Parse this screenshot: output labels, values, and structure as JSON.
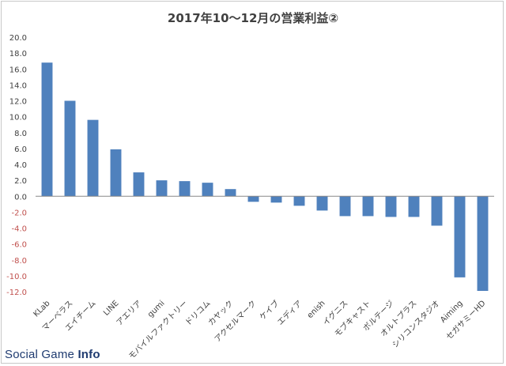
{
  "chart_data": {
    "type": "bar",
    "title": "2017年10〜12月の営業利益②",
    "categories": [
      "KLab",
      "マーベラス",
      "エイチーム",
      "LINE",
      "アエリア",
      "gumi",
      "モバイルファクトリー",
      "ドリコム",
      "カヤック",
      "アクセルマーク",
      "ケイブ",
      "エディア",
      "enish",
      "イグニス",
      "モブキャスト",
      "ボルテージ",
      "オルトプラス",
      "シリコンスタジオ",
      "Aiming",
      "セガサミーHD"
    ],
    "values": [
      16.8,
      12.0,
      9.6,
      5.9,
      3.0,
      2.0,
      1.9,
      1.7,
      0.9,
      -0.7,
      -0.8,
      -1.2,
      -1.8,
      -2.5,
      -2.5,
      -2.6,
      -2.6,
      -3.7,
      -10.2,
      -11.9
    ],
    "ylim": [
      -12.0,
      20.0
    ],
    "yticks": [
      "20.0",
      "18.0",
      "16.0",
      "14.0",
      "12.0",
      "10.0",
      "8.0",
      "6.0",
      "4.0",
      "2.0",
      "0.0",
      "-2.0",
      "-4.0",
      "-6.0",
      "-8.0",
      "-10.0",
      "-12.0"
    ],
    "grid": false,
    "bar_color": "#4f81bd",
    "negative_tick_color": "#c0504d",
    "positive_tick_color": "#404040"
  },
  "watermark": {
    "part1": "Social Game ",
    "part2": "Info"
  }
}
